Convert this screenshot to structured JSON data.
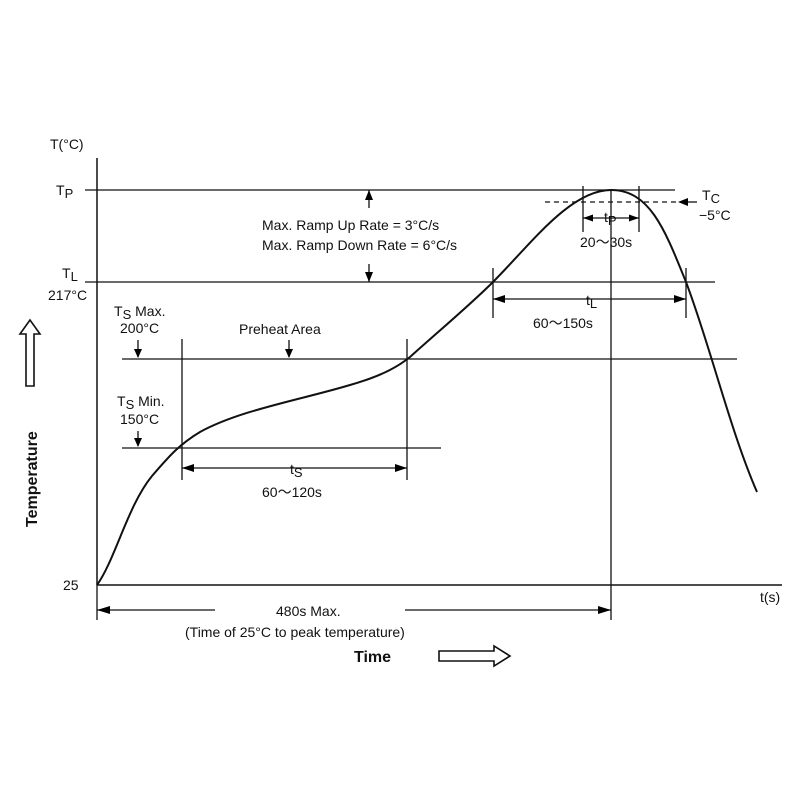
{
  "axes": {
    "y_title": "Temperature",
    "y_unit": "T(°C)",
    "x_title": "Time",
    "x_unit": "t(s)",
    "origin_label": "25"
  },
  "levels": {
    "tp": {
      "main": "T",
      "sub": "P"
    },
    "tl": {
      "main": "T",
      "sub": "L",
      "value": "217°C"
    },
    "ts_max": {
      "main": "T",
      "sub": "S",
      "suffix": " Max.",
      "value": "200°C"
    },
    "ts_min": {
      "main": "T",
      "sub": "S",
      "suffix": " Min.",
      "value": "150°C"
    }
  },
  "annotations": {
    "ramp_up": "Max. Ramp Up Rate = 3°C/s",
    "ramp_down": "Max. Ramp Down Rate = 6°C/s",
    "preheat": "Preheat Area",
    "tc": {
      "main": "T",
      "sub": "C",
      "value": "−5°C"
    },
    "tp_dur": {
      "main": "t",
      "sub": "P",
      "value": "20～30s"
    },
    "tl_dur": {
      "main": "t",
      "sub": "L",
      "value": "60～150s"
    },
    "ts_dur": {
      "main": "t",
      "sub": "S",
      "value": "60～120s"
    },
    "total": {
      "line1": "480s Max.",
      "line2": "(Time of 25°C  to peak temperature)"
    }
  }
}
